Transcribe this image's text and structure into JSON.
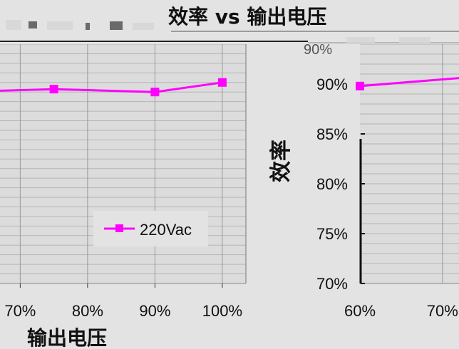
{
  "header": {
    "title": "效率 vs  输出电压",
    "legend_partial": "90%"
  },
  "chart_data": [
    {
      "type": "line",
      "title": "",
      "xlabel": "输出电压",
      "ylabel": "",
      "x_tick_labels": [
        "70%",
        "80%",
        "90%",
        "100%"
      ],
      "x_tick_values": [
        70,
        80,
        90,
        100
      ],
      "xlim": [
        67,
        103.5
      ],
      "ylim": [
        70,
        95
      ],
      "grid": true,
      "legend_position": "lower-right",
      "series": [
        {
          "name": "220Vac",
          "color": "#ff00ff",
          "x": [
            65,
            75,
            90,
            100
          ],
          "y": [
            90.1,
            90.3,
            90.0,
            91.0
          ]
        }
      ]
    },
    {
      "type": "line",
      "title": "",
      "xlabel": "",
      "ylabel": "效率",
      "y_tick_labels": [
        "70%",
        "75%",
        "80%",
        "85%",
        "90%"
      ],
      "y_tick_values": [
        70,
        75,
        80,
        85,
        90
      ],
      "x_tick_labels": [
        "60%",
        "70%"
      ],
      "x_tick_values": [
        60,
        70
      ],
      "ylim": [
        70,
        94
      ],
      "xlim": [
        60,
        72
      ],
      "grid": true,
      "series": [
        {
          "name": "",
          "color": "#ff00ff",
          "x": [
            60,
            72
          ],
          "y": [
            89.8,
            90.6
          ]
        }
      ]
    }
  ]
}
